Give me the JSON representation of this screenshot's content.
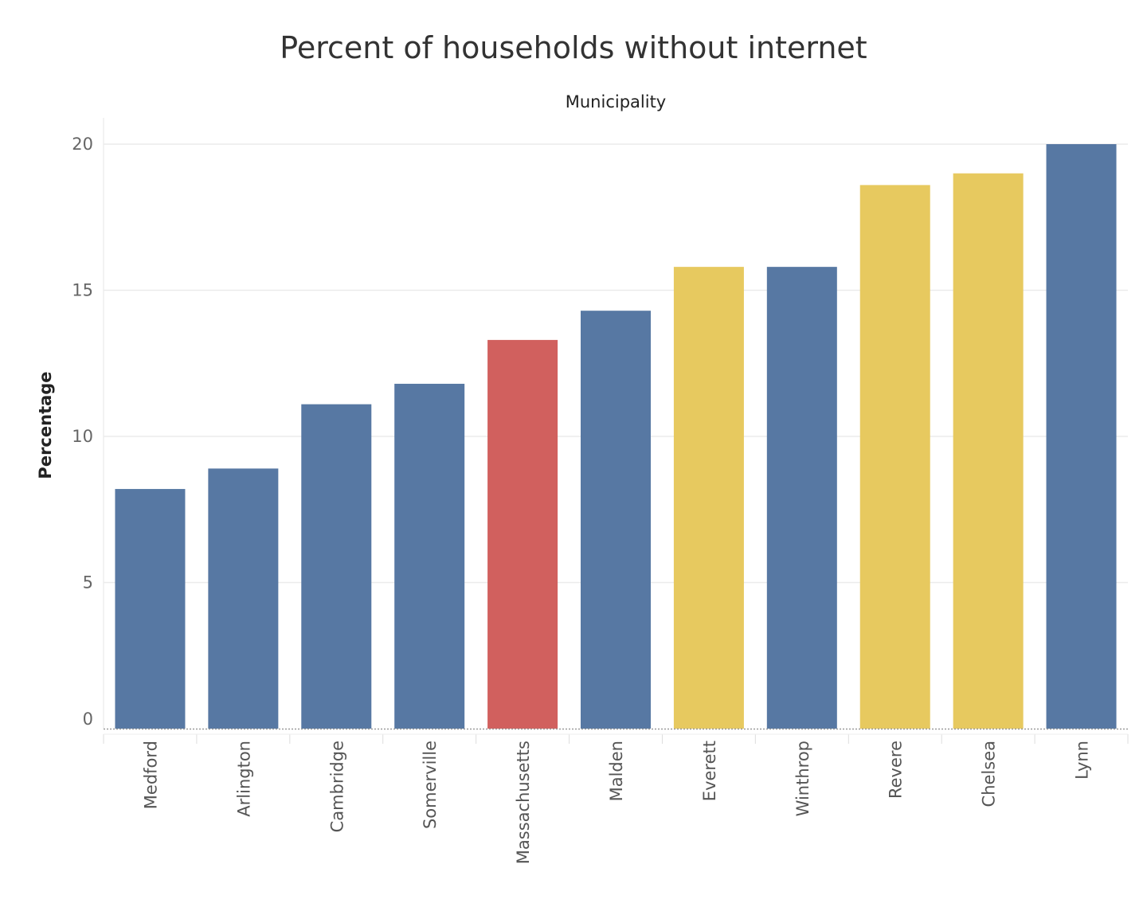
{
  "chart_data": {
    "type": "bar",
    "title": "Percent of households without internet",
    "x_header": "Municipality",
    "ylabel": "Percentage",
    "ylim": [
      0,
      20.5
    ],
    "yticks": [
      0,
      5,
      10,
      15,
      20
    ],
    "grid": true,
    "categories": [
      "Medford",
      "Arlington",
      "Cambridge",
      "Somerville",
      "Massachusetts",
      "Malden",
      "Everett",
      "Winthrop",
      "Revere",
      "Chelsea",
      "Lynn"
    ],
    "values": [
      8.2,
      8.9,
      11.1,
      11.8,
      13.3,
      14.3,
      15.8,
      15.8,
      18.6,
      19.0,
      20.0
    ],
    "bar_colors": [
      "#5778a3",
      "#5778a3",
      "#5778a3",
      "#5778a3",
      "#d1605e",
      "#5778a3",
      "#e7c95f",
      "#5778a3",
      "#e7c95f",
      "#e7c95f",
      "#5778a3"
    ]
  }
}
